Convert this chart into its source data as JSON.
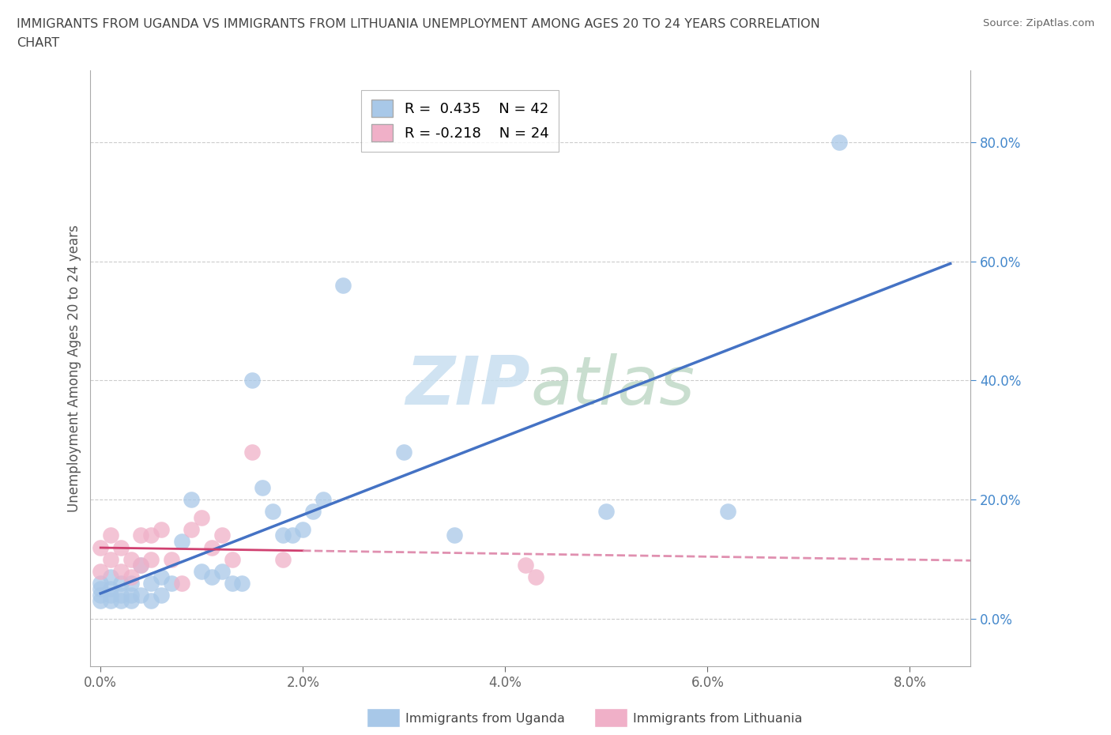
{
  "title": "IMMIGRANTS FROM UGANDA VS IMMIGRANTS FROM LITHUANIA UNEMPLOYMENT AMONG AGES 20 TO 24 YEARS CORRELATION\nCHART",
  "source": "Source: ZipAtlas.com",
  "ylabel": "Unemployment Among Ages 20 to 24 years",
  "uganda_R": 0.435,
  "uganda_N": 42,
  "lithuania_R": -0.218,
  "lithuania_N": 24,
  "uganda_color": "#a8c8e8",
  "lithuania_color": "#f0b0c8",
  "uganda_line_color": "#4472c4",
  "lithuania_line_solid_color": "#d04070",
  "lithuania_line_dash_color": "#e090b0",
  "watermark_color": "#c8dff0",
  "xlim": [
    -0.001,
    0.086
  ],
  "ylim": [
    -0.08,
    0.92
  ],
  "xticks": [
    0.0,
    0.02,
    0.04,
    0.06,
    0.08
  ],
  "yticks": [
    0.0,
    0.2,
    0.4,
    0.6,
    0.8
  ],
  "uganda_x": [
    0.0,
    0.0,
    0.0,
    0.0,
    0.001,
    0.001,
    0.001,
    0.001,
    0.002,
    0.002,
    0.002,
    0.003,
    0.003,
    0.003,
    0.004,
    0.004,
    0.005,
    0.005,
    0.006,
    0.006,
    0.007,
    0.008,
    0.009,
    0.01,
    0.011,
    0.012,
    0.013,
    0.014,
    0.015,
    0.016,
    0.017,
    0.018,
    0.019,
    0.02,
    0.021,
    0.022,
    0.024,
    0.03,
    0.035,
    0.05,
    0.062,
    0.073
  ],
  "uganda_y": [
    0.06,
    0.05,
    0.04,
    0.03,
    0.07,
    0.05,
    0.04,
    0.03,
    0.06,
    0.04,
    0.03,
    0.06,
    0.04,
    0.03,
    0.09,
    0.04,
    0.06,
    0.03,
    0.07,
    0.04,
    0.06,
    0.13,
    0.2,
    0.08,
    0.07,
    0.08,
    0.06,
    0.06,
    0.4,
    0.22,
    0.18,
    0.14,
    0.14,
    0.15,
    0.18,
    0.2,
    0.56,
    0.28,
    0.14,
    0.18,
    0.18,
    0.8
  ],
  "lithuania_x": [
    0.0,
    0.0,
    0.001,
    0.001,
    0.002,
    0.002,
    0.003,
    0.003,
    0.004,
    0.004,
    0.005,
    0.005,
    0.006,
    0.007,
    0.008,
    0.009,
    0.01,
    0.011,
    0.012,
    0.013,
    0.015,
    0.018,
    0.042,
    0.043
  ],
  "lithuania_y": [
    0.12,
    0.08,
    0.14,
    0.1,
    0.12,
    0.08,
    0.1,
    0.07,
    0.14,
    0.09,
    0.14,
    0.1,
    0.15,
    0.1,
    0.06,
    0.15,
    0.17,
    0.12,
    0.14,
    0.1,
    0.28,
    0.1,
    0.09,
    0.07
  ]
}
